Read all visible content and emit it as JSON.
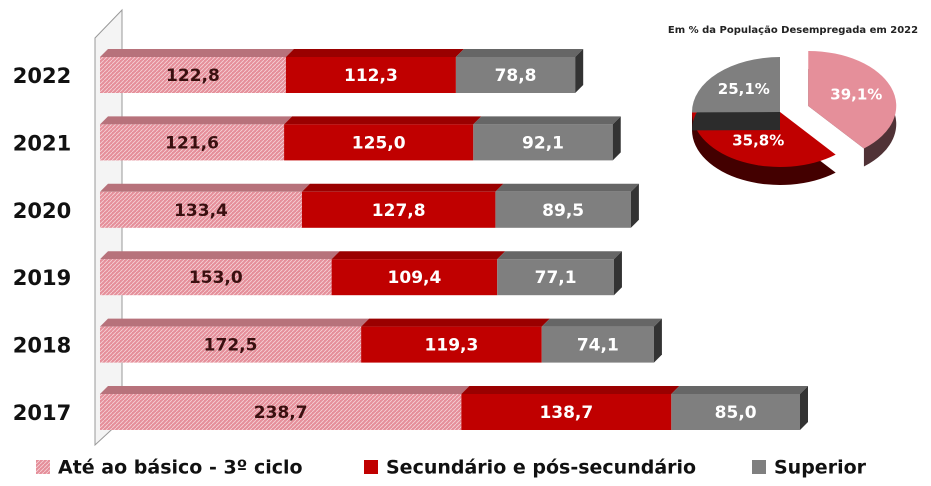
{
  "chart_data": [
    {
      "type": "stacked-barh",
      "categories": [
        "2022",
        "2021",
        "2020",
        "2019",
        "2018",
        "2017"
      ],
      "series": [
        {
          "name": "Até ao básico - 3º ciclo",
          "color": "#e58f9a",
          "values": [
            122.8,
            121.6,
            133.4,
            153.0,
            172.5,
            238.7
          ],
          "value_labels": [
            "122,8",
            "121,6",
            "133,4",
            "153,0",
            "172,5",
            "238,7"
          ]
        },
        {
          "name": "Secundário e pós-secundário",
          "color": "#c00000",
          "values": [
            112.3,
            125.0,
            127.8,
            109.4,
            119.3,
            138.7
          ],
          "value_labels": [
            "112,3",
            "125,0",
            "127,8",
            "109,4",
            "119,3",
            "138,7"
          ]
        },
        {
          "name": "Superior",
          "color": "#7f7f7f",
          "values": [
            78.8,
            92.1,
            89.5,
            77.1,
            74.1,
            85.0
          ],
          "value_labels": [
            "78,8",
            "92,1",
            "89,5",
            "77,1",
            "74,1",
            "85,0"
          ]
        }
      ]
    },
    {
      "type": "pie",
      "title": "Em % da População Desempregada em 2022",
      "values": [
        39.1,
        35.8,
        25.1
      ],
      "value_labels": [
        "39,1%",
        "35,8%",
        "25,1%"
      ],
      "colors": [
        "#e58f9a",
        "#c00000",
        "#7f7f7f"
      ]
    }
  ]
}
